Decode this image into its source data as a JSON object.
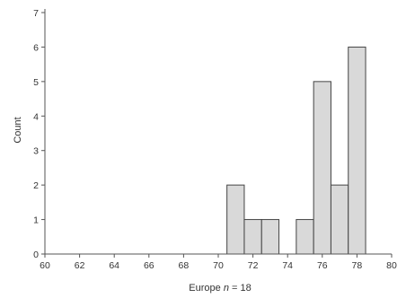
{
  "chart_data": {
    "type": "bar",
    "subtype": "histogram",
    "xlabel_prefix": "Europe ",
    "xlabel_n": "n",
    "xlabel_suffix": " = 18",
    "ylabel": "Count",
    "xlim": [
      60,
      80
    ],
    "ylim": [
      0,
      7
    ],
    "x_ticks": [
      60,
      62,
      64,
      66,
      68,
      70,
      72,
      74,
      76,
      78,
      80
    ],
    "y_ticks": [
      0,
      1,
      2,
      3,
      4,
      5,
      6,
      7
    ],
    "bin_width": 1,
    "bins": [
      {
        "x0": 70.5,
        "x1": 71.5,
        "count": 2
      },
      {
        "x0": 71.5,
        "x1": 72.5,
        "count": 1
      },
      {
        "x0": 72.5,
        "x1": 73.5,
        "count": 1
      },
      {
        "x0": 74.5,
        "x1": 75.5,
        "count": 1
      },
      {
        "x0": 75.5,
        "x1": 76.5,
        "count": 5
      },
      {
        "x0": 76.5,
        "x1": 77.5,
        "count": 2
      },
      {
        "x0": 77.5,
        "x1": 78.5,
        "count": 6
      }
    ],
    "bar_fill": "#d9d9d9",
    "bar_stroke": "#444444",
    "grid": false
  }
}
